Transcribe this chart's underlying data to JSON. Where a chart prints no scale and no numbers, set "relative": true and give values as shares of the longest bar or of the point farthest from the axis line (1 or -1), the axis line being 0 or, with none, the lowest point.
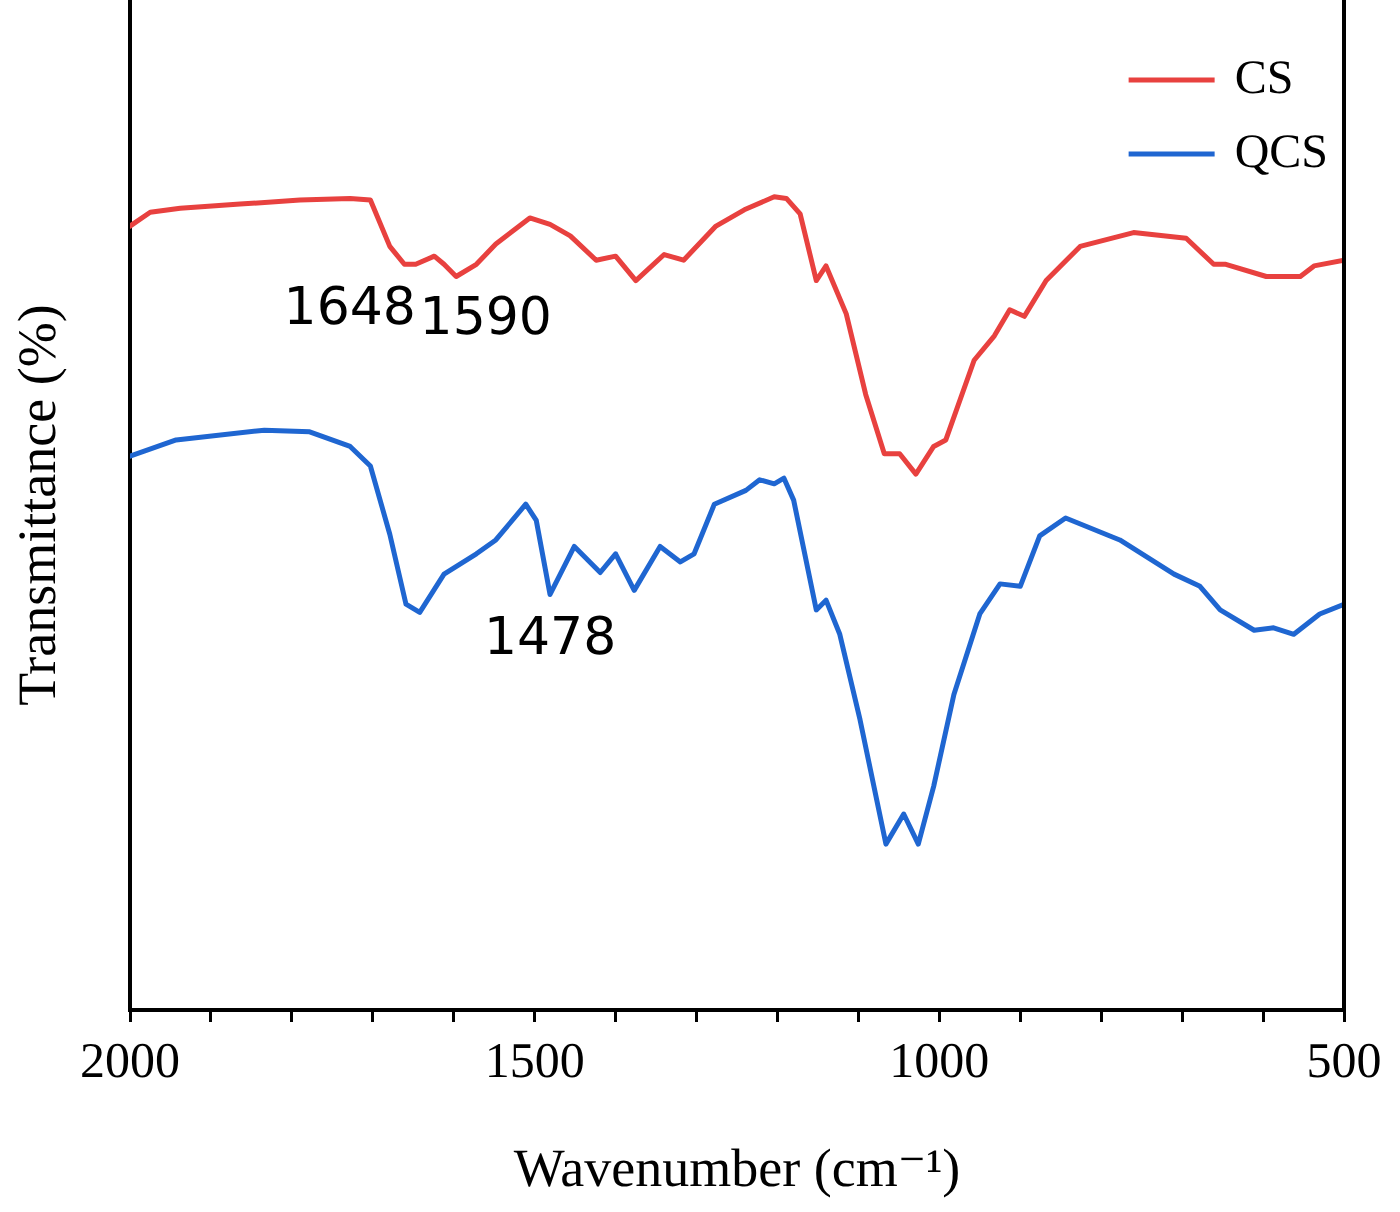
{
  "chart_data": {
    "type": "line",
    "xlabel": "Wavenumber (cm⁻¹)",
    "ylabel": "Transmittance (%)",
    "relative": true,
    "legend": "top right",
    "xlim": [
      2000,
      500
    ],
    "xticks": [
      2000,
      {
        "value": 1900,
        "label": null
      },
      {
        "value": 1800,
        "label": null
      },
      {
        "value": 1700,
        "label": null
      },
      {
        "value": 1600,
        "label": null
      },
      1500,
      {
        "value": 1400,
        "label": null
      },
      {
        "value": 1300,
        "label": null
      },
      {
        "value": 1200,
        "label": null
      },
      {
        "value": 1100,
        "label": null
      },
      1000,
      {
        "value": 900,
        "label": null
      },
      {
        "value": 800,
        "label": null
      },
      {
        "value": 700,
        "label": null
      },
      {
        "value": 600,
        "label": null
      },
      500
    ],
    "annotations": [
      "1648",
      "1590",
      "1478"
    ],
    "series": [
      {
        "name": "CS",
        "color": "#e8413f",
        "x": [
          2000,
          1975,
          1938,
          1864,
          1790,
          1728,
          1703,
          1679,
          1661,
          1647,
          1624,
          1612,
          1597,
          1572,
          1548,
          1506,
          1481,
          1456,
          1424,
          1400,
          1375,
          1340,
          1316,
          1276,
          1241,
          1204,
          1189,
          1172,
          1152,
          1140,
          1115,
          1091,
          1068,
          1049,
          1029,
          1007,
          992,
          957,
          932,
          913,
          895,
          868,
          826,
          760,
          695,
          661,
          646,
          596,
          554,
          537,
          500
        ],
        "values": [
          0.964,
          0.981,
          0.986,
          0.991,
          0.996,
          0.998,
          0.996,
          0.939,
          0.917,
          0.917,
          0.927,
          0.917,
          0.902,
          0.917,
          0.942,
          0.974,
          0.966,
          0.952,
          0.922,
          0.927,
          0.897,
          0.929,
          0.922,
          0.964,
          0.984,
          1.0,
          0.998,
          0.979,
          0.897,
          0.915,
          0.856,
          0.757,
          0.684,
          0.684,
          0.659,
          0.693,
          0.701,
          0.799,
          0.829,
          0.861,
          0.853,
          0.897,
          0.939,
          0.956,
          0.949,
          0.917,
          0.917,
          0.902,
          0.902,
          0.915,
          0.922
        ]
      },
      {
        "name": "QCS",
        "color": "#1f66d1",
        "x": [
          2000,
          1943,
          1834,
          1778,
          1728,
          1703,
          1679,
          1659,
          1642,
          1612,
          1572,
          1548,
          1511,
          1498,
          1481,
          1451,
          1419,
          1400,
          1377,
          1345,
          1320,
          1303,
          1278,
          1239,
          1222,
          1204,
          1192,
          1180,
          1152,
          1140,
          1123,
          1098,
          1066,
          1044,
          1026,
          1007,
          982,
          950,
          925,
          900,
          876,
          844,
          777,
          710,
          678,
          653,
          611,
          587,
          562,
          530,
          500
        ],
        "values": [
          0.681,
          0.701,
          0.713,
          0.711,
          0.693,
          0.669,
          0.585,
          0.499,
          0.489,
          0.536,
          0.561,
          0.578,
          0.622,
          0.602,
          0.511,
          0.57,
          0.538,
          0.561,
          0.516,
          0.57,
          0.551,
          0.561,
          0.622,
          0.639,
          0.652,
          0.647,
          0.654,
          0.627,
          0.492,
          0.504,
          0.462,
          0.357,
          0.204,
          0.241,
          0.204,
          0.275,
          0.388,
          0.487,
          0.524,
          0.521,
          0.583,
          0.605,
          0.578,
          0.536,
          0.521,
          0.492,
          0.467,
          0.47,
          0.462,
          0.487,
          0.499
        ]
      }
    ]
  }
}
